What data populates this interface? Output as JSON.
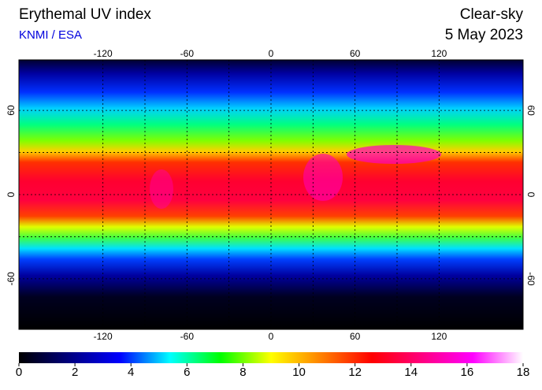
{
  "chart_data": {
    "type": "map",
    "title": "Erythemal UV index",
    "subtitle": "KNMI / ESA",
    "condition": "Clear-sky",
    "date": "5 May 2023",
    "xlim": [
      -180,
      180
    ],
    "ylim": [
      -96,
      96
    ],
    "xticks": [
      -120,
      -60,
      0,
      60,
      120
    ],
    "yticks": [
      -60,
      0,
      60
    ],
    "colorbar": {
      "lim": [
        0,
        18
      ],
      "ticks": [
        0,
        2,
        4,
        6,
        8,
        10,
        12,
        14,
        16,
        18
      ],
      "colors": [
        "#000000",
        "#000080",
        "#0000ff",
        "#00ffff",
        "#00ff00",
        "#ffff00",
        "#ff8000",
        "#ff0000",
        "#ff0080",
        "#ff00ff",
        "#ffffff"
      ]
    }
  }
}
